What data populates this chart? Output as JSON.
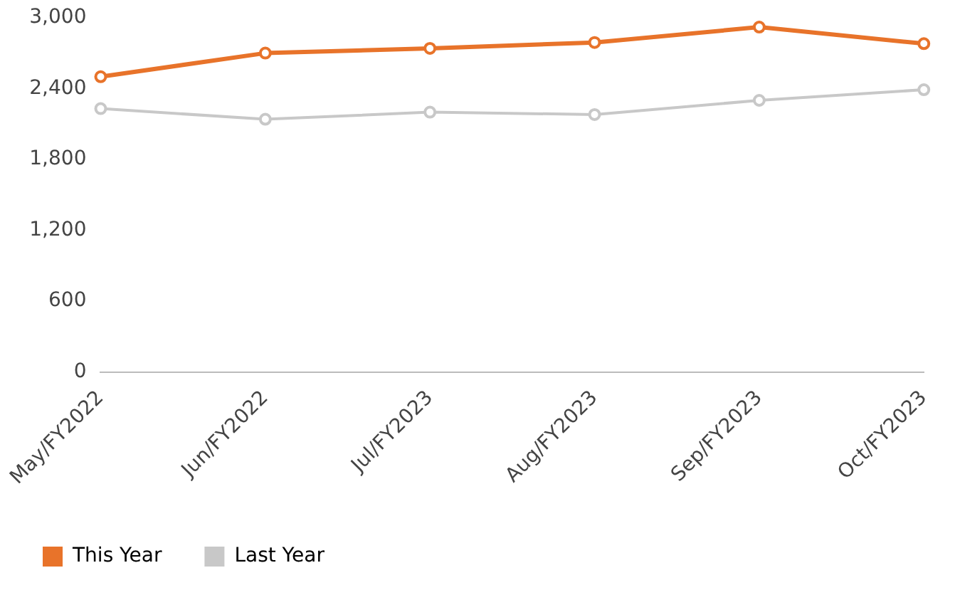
{
  "chart_data": {
    "type": "line",
    "categories": [
      "May/FY2022",
      "Jun/FY2022",
      "Jul/FY2023",
      "Aug/FY2023",
      "Sep/FY2023",
      "Oct/FY2023"
    ],
    "series": [
      {
        "name": "This Year",
        "color": "#e8732a",
        "values": [
          2500,
          2700,
          2740,
          2790,
          2920,
          2780
        ]
      },
      {
        "name": "Last Year",
        "color": "#c8c8c8",
        "values": [
          2230,
          2140,
          2200,
          2180,
          2300,
          2390
        ]
      }
    ],
    "ylim": [
      0,
      3000
    ],
    "yticks": [
      {
        "value": 0,
        "label": "0"
      },
      {
        "value": 600,
        "label": "600"
      },
      {
        "value": 1200,
        "label": "1,200"
      },
      {
        "value": 1800,
        "label": "1,800"
      },
      {
        "value": 2400,
        "label": "2,400"
      },
      {
        "value": 3000,
        "label": "3,000"
      }
    ],
    "grid": false,
    "legend": "bottom",
    "marker": "circle"
  }
}
